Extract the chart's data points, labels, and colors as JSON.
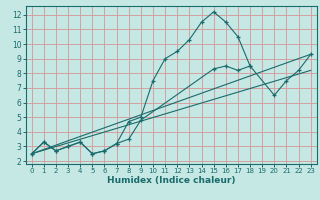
{
  "xlabel": "Humidex (Indice chaleur)",
  "background_color": "#c5e8e5",
  "grid_color": "#d4a0a0",
  "line_color": "#1a6b6b",
  "xlim": [
    -0.5,
    23.5
  ],
  "ylim": [
    1.8,
    12.6
  ],
  "xticks": [
    0,
    1,
    2,
    3,
    4,
    5,
    6,
    7,
    8,
    9,
    10,
    11,
    12,
    13,
    14,
    15,
    16,
    17,
    18,
    19,
    20,
    21,
    22,
    23
  ],
  "yticks": [
    2,
    3,
    4,
    5,
    6,
    7,
    8,
    9,
    10,
    11,
    12
  ],
  "series": [
    {
      "x": [
        0,
        1,
        2,
        3,
        4,
        5,
        6,
        7,
        8,
        9,
        10,
        11,
        12,
        13,
        14,
        15,
        16,
        17,
        18
      ],
      "y": [
        2.5,
        3.3,
        2.7,
        3.0,
        3.3,
        2.5,
        2.7,
        3.2,
        4.7,
        5.0,
        7.5,
        9.0,
        9.5,
        10.3,
        11.5,
        12.2,
        11.5,
        10.5,
        8.5
      ]
    },
    {
      "x": [
        0,
        1,
        2,
        3,
        4,
        5,
        6,
        7,
        8,
        9,
        15,
        16,
        17,
        18,
        20,
        21,
        22,
        23
      ],
      "y": [
        2.5,
        3.3,
        2.7,
        3.0,
        3.3,
        2.5,
        2.7,
        3.2,
        3.5,
        4.8,
        8.3,
        8.5,
        8.2,
        8.5,
        6.5,
        7.5,
        8.2,
        9.3
      ]
    },
    {
      "x": [
        0,
        23
      ],
      "y": [
        2.5,
        9.3
      ]
    },
    {
      "x": [
        0,
        23
      ],
      "y": [
        2.5,
        8.2
      ]
    }
  ]
}
